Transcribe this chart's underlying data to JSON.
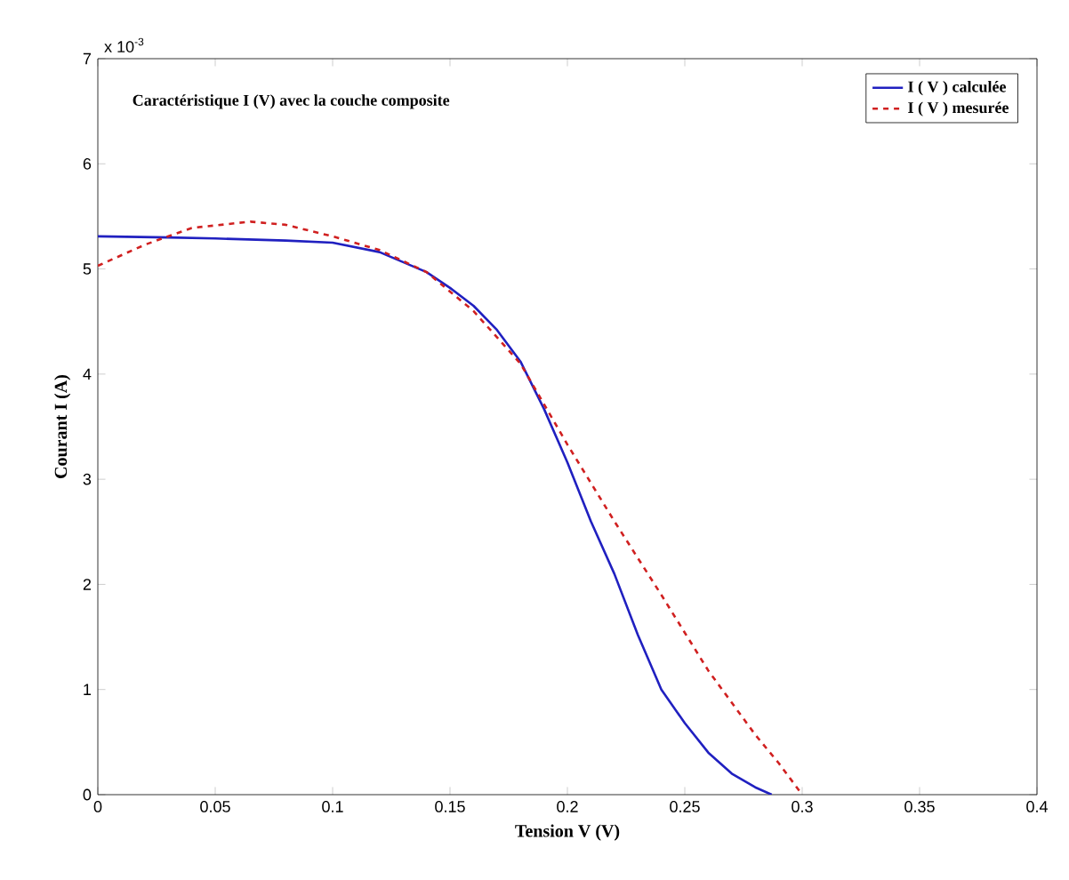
{
  "chart_data": {
    "type": "line",
    "title": "Caractéristique I (V) avec la couche composite",
    "xlabel": "Tension V (V)",
    "ylabel": "Courant I (A)",
    "annotations": [
      "x 10$^{-3}$"
    ],
    "xlim": [
      0,
      0.4
    ],
    "xticks": [
      0,
      0.05,
      0.1,
      0.15,
      0.2,
      0.25,
      0.3,
      0.35,
      0.4
    ],
    "ylim": [
      0,
      7
    ],
    "yticks": [
      0,
      1,
      2,
      3,
      4,
      5,
      6,
      7
    ],
    "legend": "top right",
    "grid": false,
    "series": [
      {
        "name": "I ( V ) calculée",
        "color": "#2020c0",
        "line_style": "solid",
        "x": [
          0,
          0.03,
          0.05,
          0.08,
          0.1,
          0.12,
          0.14,
          0.15,
          0.16,
          0.17,
          0.18,
          0.19,
          0.2,
          0.21,
          0.22,
          0.23,
          0.24,
          0.25,
          0.26,
          0.27,
          0.28,
          0.287
        ],
        "values": [
          5.31,
          5.3,
          5.29,
          5.27,
          5.25,
          5.16,
          4.97,
          4.82,
          4.65,
          4.42,
          4.12,
          3.67,
          3.16,
          2.6,
          2.1,
          1.52,
          1.0,
          0.68,
          0.4,
          0.2,
          0.07,
          0
        ]
      },
      {
        "name": "I ( V ) mesurée",
        "color": "#d02020",
        "line_style": "dashed",
        "x": [
          0,
          0.02,
          0.04,
          0.065,
          0.08,
          0.1,
          0.12,
          0.14,
          0.16,
          0.18,
          0.2,
          0.22,
          0.24,
          0.26,
          0.28,
          0.29,
          0.3
        ],
        "values": [
          5.03,
          5.23,
          5.39,
          5.45,
          5.42,
          5.31,
          5.18,
          4.97,
          4.6,
          4.1,
          3.33,
          2.6,
          1.9,
          1.18,
          0.57,
          0.3,
          0
        ]
      }
    ]
  }
}
